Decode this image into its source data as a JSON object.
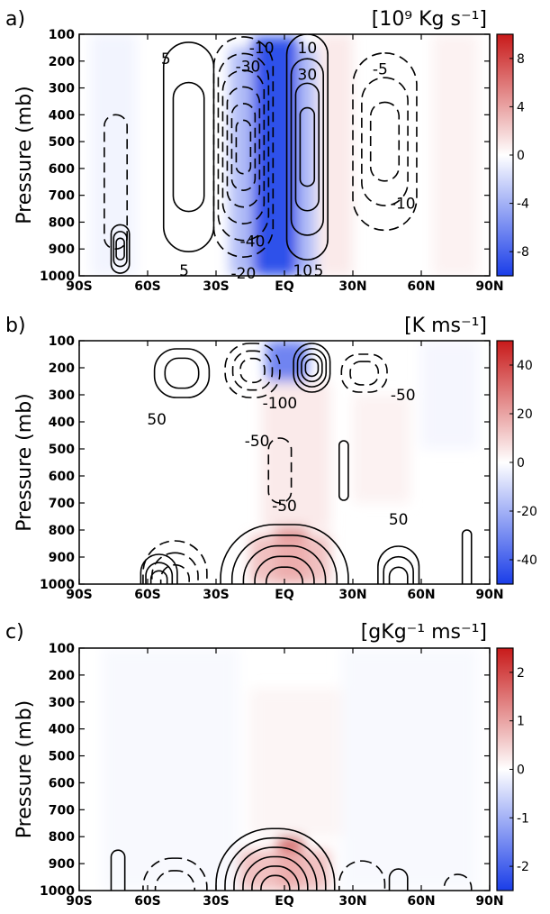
{
  "chart_data": [
    {
      "type": "heatmap",
      "panel_label": "a)",
      "units": "[10⁹ Kg s⁻¹]",
      "ylabel": "Pressure (mb)",
      "y_ticks": [
        "100",
        "200",
        "300",
        "400",
        "500",
        "600",
        "700",
        "800",
        "900",
        "1000"
      ],
      "ylim": [
        1000,
        100
      ],
      "x_ticks": [
        "90S",
        "60S",
        "30S",
        "EQ",
        "30N",
        "60N",
        "90N"
      ],
      "xlim": [
        -90,
        90
      ],
      "colorbar": {
        "min": -8,
        "max": 8,
        "ticks": [
          "8",
          "4",
          "0",
          "-4",
          "-8"
        ],
        "colors": [
          "#1a3de8",
          "#ffffff",
          "#c81a1a"
        ]
      },
      "fill_regions": [
        {
          "lat": [
            -14,
            6
          ],
          "p": [
            110,
            1000
          ],
          "value": -8
        },
        {
          "lat": [
            -24,
            -14
          ],
          "p": [
            150,
            1000
          ],
          "value": -3
        },
        {
          "lat": [
            6,
            14
          ],
          "p": [
            150,
            1000
          ],
          "value": -3
        },
        {
          "lat": [
            15,
            30
          ],
          "p": [
            100,
            1000
          ],
          "value": 0.8
        },
        {
          "lat": [
            65,
            85
          ],
          "p": [
            100,
            1000
          ],
          "value": 0.5
        },
        {
          "lat": [
            -85,
            -65
          ],
          "p": [
            100,
            1000
          ],
          "value": -0.5
        }
      ],
      "contours": [
        {
          "sign": "positive",
          "lat_center": -42,
          "p_center": 520,
          "lat_half_width": 11,
          "p_half_height": 390,
          "levels": 2
        },
        {
          "sign": "negative",
          "lat_center": -18,
          "p_center": 520,
          "lat_half_width": 13,
          "p_half_height": 410,
          "levels": 6
        },
        {
          "sign": "positive",
          "lat_center": 10,
          "p_center": 520,
          "lat_half_width": 9,
          "p_half_height": 420,
          "levels": 4
        },
        {
          "sign": "negative",
          "lat_center": 44,
          "p_center": 500,
          "lat_half_width": 14,
          "p_half_height": 330,
          "levels": 3
        },
        {
          "sign": "negative",
          "lat_center": -74,
          "p_center": 650,
          "lat_half_width": 5,
          "p_half_height": 250,
          "levels": 1
        },
        {
          "sign": "positive",
          "lat_center": -72,
          "p_center": 900,
          "lat_half_width": 4,
          "p_half_height": 90,
          "levels": 3
        }
      ],
      "contour_labels": [
        {
          "text": "5",
          "lat": -52,
          "p": 190
        },
        {
          "text": "-10",
          "lat": -10,
          "p": 150
        },
        {
          "text": "-30",
          "lat": -16,
          "p": 220
        },
        {
          "text": "10",
          "lat": 10,
          "p": 150
        },
        {
          "text": "30",
          "lat": 10,
          "p": 250
        },
        {
          "text": "-5",
          "lat": 42,
          "p": 230
        },
        {
          "text": "-10",
          "lat": 52,
          "p": 730
        },
        {
          "text": "-40",
          "lat": -14,
          "p": 870
        },
        {
          "text": "5",
          "lat": -44,
          "p": 980
        },
        {
          "text": "-20",
          "lat": -18,
          "p": 990
        },
        {
          "text": "10",
          "lat": 8,
          "p": 980
        },
        {
          "text": "5",
          "lat": 15,
          "p": 980
        }
      ]
    },
    {
      "type": "heatmap",
      "panel_label": "b)",
      "units": "[K ms⁻¹]",
      "ylabel": "Pressure (mb)",
      "y_ticks": [
        "100",
        "200",
        "300",
        "400",
        "500",
        "600",
        "700",
        "800",
        "900",
        "1000"
      ],
      "ylim": [
        1000,
        100
      ],
      "x_ticks": [
        "90S",
        "60S",
        "30S",
        "EQ",
        "30N",
        "60N",
        "90N"
      ],
      "xlim": [
        -90,
        90
      ],
      "colorbar": {
        "min": -40,
        "max": 40,
        "ticks": [
          "40",
          "20",
          "0",
          "-20",
          "-40"
        ],
        "colors": [
          "#1a3de8",
          "#ffffff",
          "#c81a1a"
        ]
      },
      "fill_regions": [
        {
          "lat": [
            -8,
            10
          ],
          "p": [
            100,
            260
          ],
          "value": -28
        },
        {
          "lat": [
            -4,
            10
          ],
          "p": [
            780,
            1000
          ],
          "value": 38
        },
        {
          "lat": [
            -15,
            20
          ],
          "p": [
            820,
            1000
          ],
          "value": 12
        },
        {
          "lat": [
            -10,
            20
          ],
          "p": [
            250,
            800
          ],
          "value": 4
        },
        {
          "lat": [
            30,
            55
          ],
          "p": [
            300,
            700
          ],
          "value": 2.5
        },
        {
          "lat": [
            60,
            85
          ],
          "p": [
            100,
            500
          ],
          "value": -2
        }
      ],
      "contours": [
        {
          "sign": "positive",
          "lat_center": -45,
          "p_center": 220,
          "lat_half_width": 12,
          "p_half_height": 90,
          "levels": 2
        },
        {
          "sign": "negative",
          "lat_center": -14,
          "p_center": 210,
          "lat_half_width": 12,
          "p_half_height": 100,
          "levels": 3
        },
        {
          "sign": "positive",
          "lat_center": 12,
          "p_center": 200,
          "lat_half_width": 8,
          "p_half_height": 90,
          "levels": 4
        },
        {
          "sign": "negative",
          "lat_center": 35,
          "p_center": 220,
          "lat_half_width": 10,
          "p_half_height": 70,
          "levels": 2
        },
        {
          "sign": "negative",
          "lat_center": -2,
          "p_center": 580,
          "lat_half_width": 5,
          "p_half_height": 120,
          "levels": 1
        },
        {
          "sign": "positive",
          "lat_center": 26,
          "p_center": 580,
          "lat_half_width": 2,
          "p_half_height": 110,
          "levels": 1
        },
        {
          "sign": "positive",
          "lat_center": 0,
          "p_center": 1000,
          "lat_half_width": 28,
          "p_half_height": 220,
          "levels": 5
        },
        {
          "sign": "negative",
          "lat_center": -48,
          "p_center": 1000,
          "lat_half_width": 14,
          "p_half_height": 160,
          "levels": 3
        },
        {
          "sign": "positive",
          "lat_center": -55,
          "p_center": 1000,
          "lat_half_width": 8,
          "p_half_height": 110,
          "levels": 3
        },
        {
          "sign": "positive",
          "lat_center": 50,
          "p_center": 1000,
          "lat_half_width": 9,
          "p_half_height": 140,
          "levels": 3
        },
        {
          "sign": "positive",
          "lat_center": 80,
          "p_center": 1000,
          "lat_half_width": 2,
          "p_half_height": 200,
          "levels": 1
        }
      ],
      "contour_labels": [
        {
          "text": "-100",
          "lat": -2,
          "p": 330
        },
        {
          "text": "-50",
          "lat": 52,
          "p": 300
        },
        {
          "text": "50",
          "lat": -56,
          "p": 390
        },
        {
          "text": "-50",
          "lat": -12,
          "p": 470
        },
        {
          "text": "-50",
          "lat": 0,
          "p": 710
        },
        {
          "text": "50",
          "lat": 50,
          "p": 760
        }
      ]
    },
    {
      "type": "heatmap",
      "panel_label": "c)",
      "units": "[gKg⁻¹ ms⁻¹]",
      "ylabel": "Pressure (mb)",
      "y_ticks": [
        "100",
        "200",
        "300",
        "400",
        "500",
        "600",
        "700",
        "800",
        "900",
        "1000"
      ],
      "ylim": [
        1000,
        100
      ],
      "x_ticks": [
        "90S",
        "60S",
        "30S",
        "EQ",
        "30N",
        "60N",
        "90N"
      ],
      "xlim": [
        -90,
        90
      ],
      "colorbar": {
        "min": -2,
        "max": 2,
        "ticks": [
          "2",
          "1",
          "0",
          "-1",
          "-2"
        ],
        "colors": [
          "#1a3de8",
          "#ffffff",
          "#c81a1a"
        ]
      },
      "fill_regions": [
        {
          "lat": [
            -3,
            8
          ],
          "p": [
            800,
            1000
          ],
          "value": 1.9
        },
        {
          "lat": [
            -20,
            20
          ],
          "p": [
            850,
            1000
          ],
          "value": 0.6
        },
        {
          "lat": [
            -15,
            25
          ],
          "p": [
            250,
            800
          ],
          "value": 0.1
        },
        {
          "lat": [
            -80,
            -20
          ],
          "p": [
            100,
            1000
          ],
          "value": -0.07
        },
        {
          "lat": [
            25,
            85
          ],
          "p": [
            100,
            1000
          ],
          "value": -0.07
        }
      ],
      "contours": [
        {
          "sign": "positive",
          "lat_center": -4,
          "p_center": 1000,
          "lat_half_width": 26,
          "p_half_height": 230,
          "levels": 6
        },
        {
          "sign": "negative",
          "lat_center": -48,
          "p_center": 1000,
          "lat_half_width": 14,
          "p_half_height": 120,
          "levels": 2
        },
        {
          "sign": "positive",
          "lat_center": -73,
          "p_center": 1000,
          "lat_half_width": 3,
          "p_half_height": 150,
          "levels": 1
        },
        {
          "sign": "negative",
          "lat_center": 34,
          "p_center": 1000,
          "lat_half_width": 10,
          "p_half_height": 110,
          "levels": 1
        },
        {
          "sign": "positive",
          "lat_center": 50,
          "p_center": 1000,
          "lat_half_width": 4,
          "p_half_height": 80,
          "levels": 1
        },
        {
          "sign": "negative",
          "lat_center": 76,
          "p_center": 1000,
          "lat_half_width": 6,
          "p_half_height": 60,
          "levels": 1
        }
      ],
      "contour_labels": []
    }
  ]
}
